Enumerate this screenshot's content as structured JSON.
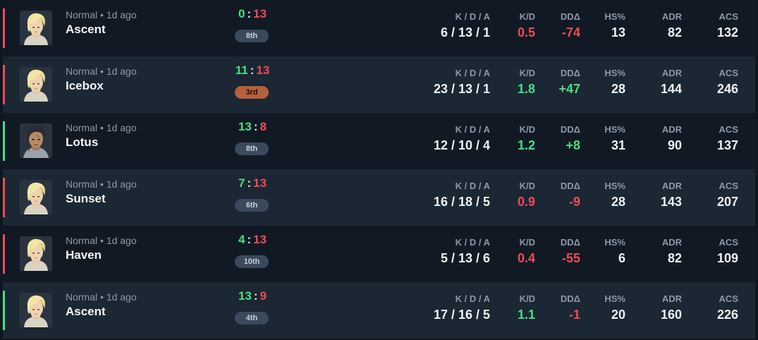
{
  "colors": {
    "win": "#4ade80",
    "loss": "#ef4a5a",
    "row_dark": "#111a24",
    "row_light": "#1b2733",
    "badge": "#3a4a5c",
    "badge_mvp": "#b4613d"
  },
  "headers": {
    "kda": "K / D / A",
    "kd": "K/D",
    "dd": "DDΔ",
    "hs": "HS%",
    "adr": "ADR",
    "acs": "ACS"
  },
  "matches": [
    {
      "agent_icon": "blonde-agent-portrait-icon",
      "result": "loss",
      "mode": "Normal",
      "time": "1d ago",
      "map": "Ascent",
      "score_us": "0",
      "score_them": "13",
      "placement": "8th",
      "kda": "6 / 13 / 1",
      "kd": "0.5",
      "dd": "-74",
      "hs": "13",
      "adr": "82",
      "acs": "132"
    },
    {
      "agent_icon": "blonde-agent-portrait-icon",
      "result": "loss",
      "mode": "Normal",
      "time": "1d ago",
      "map": "Icebox",
      "score_us": "11",
      "score_them": "13",
      "placement": "3rd",
      "kda": "23 / 13 / 1",
      "kd": "1.8",
      "dd": "+47",
      "hs": "28",
      "adr": "144",
      "acs": "246"
    },
    {
      "agent_icon": "dark-haired-agent-portrait-icon",
      "result": "win",
      "mode": "Normal",
      "time": "1d ago",
      "map": "Lotus",
      "score_us": "13",
      "score_them": "8",
      "placement": "8th",
      "kda": "12 / 10 / 4",
      "kd": "1.2",
      "dd": "+8",
      "hs": "31",
      "adr": "90",
      "acs": "137"
    },
    {
      "agent_icon": "blonde-agent-portrait-icon",
      "result": "loss",
      "mode": "Normal",
      "time": "1d ago",
      "map": "Sunset",
      "score_us": "7",
      "score_them": "13",
      "placement": "6th",
      "kda": "16 / 18 / 5",
      "kd": "0.9",
      "dd": "-9",
      "hs": "28",
      "adr": "143",
      "acs": "207"
    },
    {
      "agent_icon": "blonde-agent-portrait-icon",
      "result": "loss",
      "mode": "Normal",
      "time": "1d ago",
      "map": "Haven",
      "score_us": "4",
      "score_them": "13",
      "placement": "10th",
      "kda": "5 / 13 / 6",
      "kd": "0.4",
      "dd": "-55",
      "hs": "6",
      "adr": "82",
      "acs": "109"
    },
    {
      "agent_icon": "blonde-agent-portrait-icon",
      "result": "win",
      "mode": "Normal",
      "time": "1d ago",
      "map": "Ascent",
      "score_us": "13",
      "score_them": "9",
      "placement": "4th",
      "kda": "17 / 16 / 5",
      "kd": "1.1",
      "dd": "-1",
      "hs": "20",
      "adr": "160",
      "acs": "226"
    }
  ]
}
